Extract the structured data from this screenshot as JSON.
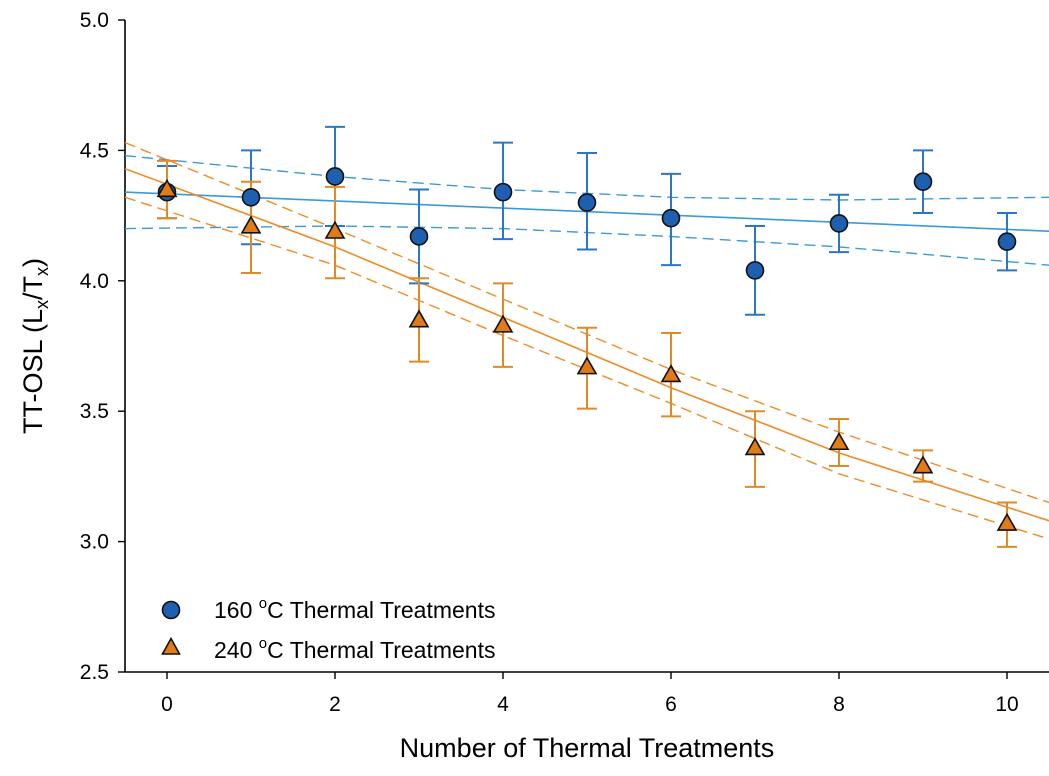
{
  "chart_data": {
    "type": "scatter",
    "xlabel": "Number of Thermal Treatments",
    "ylabel": {
      "main": "TT-OSL (L",
      "sub1": "x",
      "mid": "/T",
      "sub2": "x",
      "end": ")"
    },
    "xlim": [
      -0.5,
      10.5
    ],
    "ylim": [
      2.5,
      5.0
    ],
    "x_ticks": [
      "0",
      "2",
      "4",
      "6",
      "8",
      "10"
    ],
    "y_ticks": [
      "2.5",
      "3.0",
      "3.5",
      "4.0",
      "4.5",
      "5.0"
    ],
    "grid": false,
    "legend_position": "bottom-left",
    "series": [
      {
        "name_prefix": "160 ",
        "name_sup": "o",
        "name_suffix": "C Thermal Treatments",
        "marker": "circle",
        "color": "#1f5fb0",
        "errorbar_color": "#2a77c7",
        "x": [
          0,
          1,
          2,
          3,
          4,
          5,
          6,
          7,
          8,
          9,
          10
        ],
        "y": [
          4.34,
          4.32,
          4.4,
          4.17,
          4.34,
          4.3,
          4.24,
          4.04,
          4.22,
          4.38,
          4.15
        ],
        "yerr_low": [
          4.24,
          4.14,
          4.21,
          3.99,
          4.16,
          4.12,
          4.06,
          3.87,
          4.11,
          4.26,
          4.04
        ],
        "yerr_high": [
          4.44,
          4.5,
          4.59,
          4.35,
          4.53,
          4.49,
          4.41,
          4.21,
          4.33,
          4.5,
          4.26
        ],
        "fit": {
          "x": [
            -0.5,
            10.5
          ],
          "y": [
            4.34,
            4.19
          ],
          "color": "#3a9bd6"
        },
        "ci_upper": {
          "x": [
            -0.5,
            2,
            4,
            6,
            8,
            10.5
          ],
          "y": [
            4.48,
            4.4,
            4.35,
            4.32,
            4.31,
            4.32
          ]
        },
        "ci_lower": {
          "x": [
            -0.5,
            2,
            4,
            6,
            8,
            10.5
          ],
          "y": [
            4.2,
            4.21,
            4.2,
            4.17,
            4.13,
            4.06
          ]
        }
      },
      {
        "name_prefix": "240 ",
        "name_sup": "o",
        "name_suffix": "C Thermal Treatments",
        "marker": "triangle",
        "color": "#e07b16",
        "errorbar_color": "#e08a26",
        "x": [
          0,
          1,
          2,
          3,
          4,
          5,
          6,
          7,
          8,
          9,
          10
        ],
        "y": [
          4.35,
          4.21,
          4.19,
          3.85,
          3.83,
          3.67,
          3.64,
          3.36,
          3.38,
          3.29,
          3.07
        ],
        "yerr_low": [
          4.24,
          4.03,
          4.01,
          3.69,
          3.67,
          3.51,
          3.48,
          3.21,
          3.29,
          3.23,
          2.98
        ],
        "yerr_high": [
          4.46,
          4.38,
          4.36,
          4.01,
          3.99,
          3.82,
          3.8,
          3.5,
          3.47,
          3.35,
          3.15
        ],
        "fit": {
          "x": [
            -0.5,
            2,
            4,
            6,
            8,
            10.5
          ],
          "y": [
            4.43,
            4.13,
            3.86,
            3.59,
            3.34,
            3.08
          ],
          "color": "#f08a24"
        },
        "ci_upper": {
          "x": [
            -0.5,
            2,
            4,
            6,
            8,
            10.5
          ],
          "y": [
            4.53,
            4.2,
            3.93,
            3.66,
            3.42,
            3.15
          ]
        },
        "ci_lower": {
          "x": [
            -0.5,
            2,
            4,
            6,
            8,
            10.5
          ],
          "y": [
            4.32,
            4.06,
            3.79,
            3.53,
            3.26,
            3.01
          ]
        }
      }
    ]
  }
}
